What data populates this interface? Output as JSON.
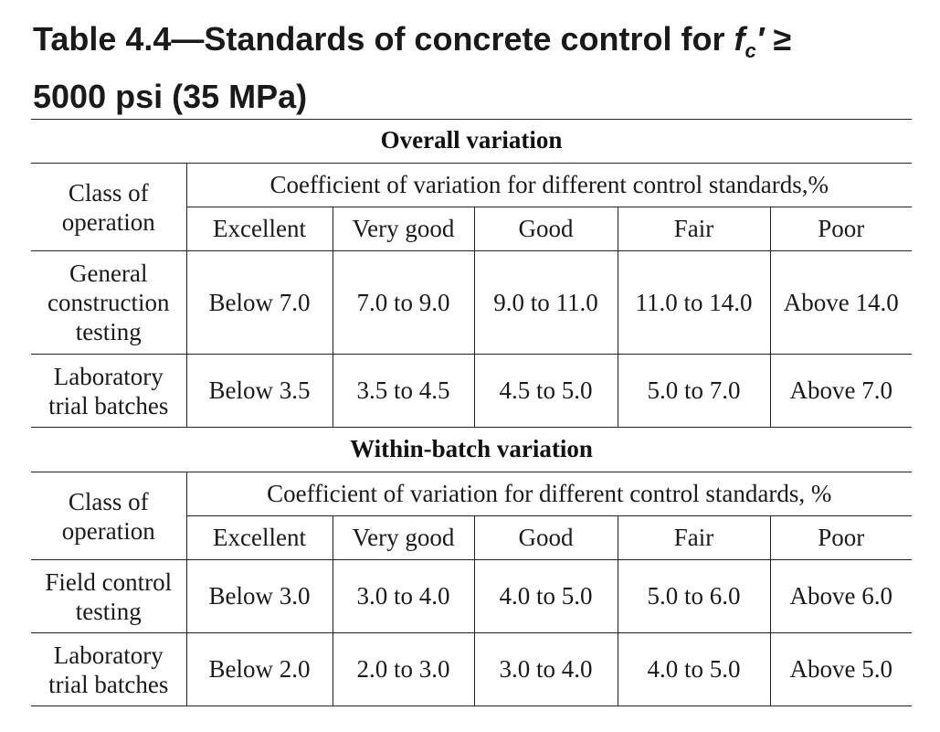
{
  "title": {
    "prefix": "Table 4.4—Standards of concrete control for ",
    "symbol": "f",
    "symbol_sub": "c",
    "symbol_prime": "′",
    "suffix": " ≥",
    "line2": "5000 psi (35 MPa)"
  },
  "overall": {
    "heading": "Overall variation",
    "class_header_1": "Class of",
    "class_header_2": "operation",
    "cov_header": "Coefficient of variation for different control standards,%",
    "standards": [
      "Excellent",
      "Very good",
      "Good",
      "Fair",
      "Poor"
    ],
    "rows": [
      {
        "label_lines": [
          "General",
          "construction",
          "testing"
        ],
        "values": [
          "Below 7.0",
          "7.0 to 9.0",
          "9.0 to 11.0",
          "11.0 to 14.0",
          "Above 14.0"
        ]
      },
      {
        "label_lines": [
          "Laboratory",
          "trial batches"
        ],
        "values": [
          "Below 3.5",
          "3.5 to 4.5",
          "4.5 to 5.0",
          "5.0 to 7.0",
          "Above 7.0"
        ]
      }
    ]
  },
  "within": {
    "heading": "Within-batch variation",
    "class_header_1": "Class of",
    "class_header_2": "operation",
    "cov_header": "Coefficient of variation for different control standards, %",
    "standards": [
      "Excellent",
      "Very good",
      "Good",
      "Fair",
      "Poor"
    ],
    "rows": [
      {
        "label_lines": [
          "Field control",
          "testing"
        ],
        "values": [
          "Below 3.0",
          "3.0 to 4.0",
          "4.0 to 5.0",
          "5.0 to 6.0",
          "Above 6.0"
        ]
      },
      {
        "label_lines": [
          "Laboratory",
          "trial batches"
        ],
        "values": [
          "Below 2.0",
          "2.0 to 3.0",
          "3.0 to 4.0",
          "4.0 to 5.0",
          "Above 5.0"
        ]
      }
    ]
  }
}
